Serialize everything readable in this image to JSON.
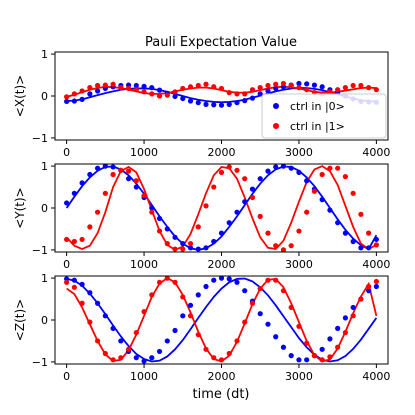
{
  "colors": {
    "ctrl0": "#0000ff",
    "ctrl1": "#ff0000",
    "axis": "#000000",
    "background": "#ffffff"
  },
  "chart_data": {
    "type": "line",
    "title": "Pauli Expectation Value",
    "xlabel": "time (dt)",
    "xlim": [
      -150,
      4150
    ],
    "xticks": [
      0,
      1000,
      2000,
      3000,
      4000
    ],
    "yticks": [
      -1,
      0,
      1
    ],
    "legend": {
      "placement": "lower-right",
      "subplot": 0,
      "entries": [
        "ctrl in |0>",
        "ctrl in |1>"
      ]
    },
    "x": [
      0,
      100,
      200,
      300,
      400,
      500,
      600,
      700,
      800,
      900,
      1000,
      1100,
      1200,
      1300,
      1400,
      1500,
      1600,
      1700,
      1800,
      1900,
      2000,
      2100,
      2200,
      2300,
      2400,
      2500,
      2600,
      2700,
      2800,
      2900,
      3000,
      3100,
      3200,
      3300,
      3400,
      3500,
      3600,
      3700,
      3800,
      3900,
      4000
    ],
    "subplots": [
      {
        "ylabel": "<X(t)>",
        "ylim": [
          -1.05,
          1.05
        ],
        "series": [
          {
            "name": "ctrl in |0>",
            "color": "blue",
            "points": [
              -0.13,
              -0.12,
              -0.08,
              0.05,
              0.12,
              0.18,
              0.22,
              0.25,
              0.26,
              0.25,
              0.23,
              0.2,
              0.14,
              0.06,
              -0.01,
              -0.06,
              -0.12,
              -0.16,
              -0.2,
              -0.21,
              -0.22,
              -0.2,
              -0.16,
              -0.11,
              -0.05,
              0.05,
              0.12,
              0.18,
              0.22,
              0.26,
              0.3,
              0.29,
              0.26,
              0.22,
              0.15,
              0.08,
              0.0,
              -0.07,
              -0.13,
              -0.14,
              -0.15
            ],
            "fit": [
              -0.12,
              -0.11,
              -0.08,
              -0.03,
              0.02,
              0.07,
              0.11,
              0.15,
              0.17,
              0.18,
              0.18,
              0.17,
              0.14,
              0.1,
              0.05,
              0.0,
              -0.05,
              -0.09,
              -0.12,
              -0.14,
              -0.15,
              -0.14,
              -0.12,
              -0.09,
              -0.04,
              0.01,
              0.06,
              0.11,
              0.15,
              0.18,
              0.19,
              0.19,
              0.17,
              0.14,
              0.09,
              0.04,
              -0.01,
              -0.06,
              -0.1,
              -0.12,
              -0.13
            ]
          },
          {
            "name": "ctrl in |1>",
            "color": "red",
            "points": [
              -0.02,
              0.05,
              0.12,
              0.2,
              0.25,
              0.26,
              0.28,
              0.2,
              0.18,
              0.15,
              0.1,
              0.05,
              0.0,
              0.02,
              0.1,
              0.18,
              0.22,
              0.25,
              0.28,
              0.22,
              0.18,
              0.08,
              0.05,
              0.05,
              0.15,
              0.2,
              0.25,
              0.28,
              0.3,
              0.25,
              0.2,
              0.15,
              0.08,
              0.05,
              0.1,
              0.15,
              0.2,
              0.25,
              0.25,
              0.2,
              0.15
            ],
            "fit": [
              -0.02,
              0.03,
              0.09,
              0.15,
              0.19,
              0.22,
              0.21,
              0.19,
              0.15,
              0.11,
              0.07,
              0.05,
              0.05,
              0.07,
              0.11,
              0.15,
              0.18,
              0.2,
              0.2,
              0.18,
              0.14,
              0.1,
              0.08,
              0.08,
              0.1,
              0.14,
              0.18,
              0.21,
              0.22,
              0.21,
              0.18,
              0.14,
              0.1,
              0.08,
              0.08,
              0.1,
              0.13,
              0.16,
              0.19,
              0.2,
              0.19
            ]
          }
        ]
      },
      {
        "ylabel": "<Y(t)>",
        "ylim": [
          -1.05,
          1.05
        ],
        "series": [
          {
            "name": "ctrl in |0>",
            "color": "blue",
            "points": [
              0.12,
              0.35,
              0.6,
              0.8,
              0.95,
              1.0,
              0.98,
              0.9,
              0.7,
              0.5,
              0.25,
              0.0,
              -0.25,
              -0.5,
              -0.7,
              -0.85,
              -0.95,
              -0.98,
              -0.95,
              -0.8,
              -0.6,
              -0.35,
              -0.1,
              0.15,
              0.45,
              0.7,
              0.88,
              0.98,
              1.0,
              0.95,
              0.85,
              0.65,
              0.45,
              0.2,
              -0.05,
              -0.35,
              -0.6,
              -0.8,
              -0.95,
              -0.95,
              -0.75
            ],
            "fit": [
              0.0,
              0.27,
              0.52,
              0.73,
              0.89,
              0.98,
              0.99,
              0.92,
              0.78,
              0.58,
              0.34,
              0.07,
              -0.2,
              -0.45,
              -0.68,
              -0.85,
              -0.96,
              -1.0,
              -0.96,
              -0.85,
              -0.68,
              -0.45,
              -0.2,
              0.07,
              0.34,
              0.58,
              0.78,
              0.92,
              0.99,
              0.98,
              0.89,
              0.73,
              0.52,
              0.27,
              0.0,
              -0.27,
              -0.52,
              -0.73,
              -0.89,
              -0.98,
              -0.65
            ]
          },
          {
            "name": "ctrl in |1>",
            "color": "red",
            "points": [
              -0.75,
              -0.8,
              -0.75,
              -0.45,
              -0.1,
              0.35,
              0.8,
              0.9,
              0.88,
              0.65,
              0.3,
              -0.1,
              -0.55,
              -0.85,
              -0.98,
              -0.98,
              -0.85,
              -0.45,
              0.05,
              0.5,
              0.85,
              0.98,
              0.9,
              0.7,
              0.25,
              -0.2,
              -0.6,
              -0.9,
              -1.0,
              -0.9,
              -0.55,
              -0.1,
              0.4,
              0.8,
              0.95,
              0.95,
              0.75,
              0.35,
              -0.15,
              -0.6,
              -0.88
            ],
            "fit": [
              -0.7,
              -0.9,
              -0.98,
              -0.9,
              -0.6,
              -0.1,
              0.5,
              0.88,
              0.98,
              0.85,
              0.45,
              -0.05,
              -0.55,
              -0.88,
              -1.0,
              -0.92,
              -0.62,
              -0.15,
              0.35,
              0.78,
              0.98,
              0.95,
              0.7,
              0.25,
              -0.25,
              -0.7,
              -0.95,
              -0.98,
              -0.78,
              -0.35,
              0.15,
              0.62,
              0.92,
              1.0,
              0.88,
              0.55,
              0.05,
              -0.45,
              -0.85,
              -0.98,
              -0.88
            ]
          }
        ]
      },
      {
        "ylabel": "<Z(t)>",
        "ylim": [
          -1.05,
          1.05
        ],
        "series": [
          {
            "name": "ctrl in |0>",
            "color": "blue",
            "points": [
              0.98,
              0.95,
              0.85,
              0.65,
              0.4,
              0.1,
              -0.2,
              -0.5,
              -0.75,
              -0.9,
              -0.98,
              -0.9,
              -0.75,
              -0.5,
              -0.25,
              0.1,
              0.35,
              0.6,
              0.8,
              0.95,
              1.0,
              0.98,
              0.9,
              0.7,
              0.45,
              0.15,
              -0.1,
              -0.4,
              -0.65,
              -0.85,
              -0.95,
              -0.95,
              -0.85,
              -0.7,
              -0.45,
              -0.2,
              0.05,
              0.3,
              0.5,
              0.7,
              0.8
            ],
            "fit": [
              0.98,
              0.94,
              0.82,
              0.63,
              0.4,
              0.14,
              -0.13,
              -0.39,
              -0.62,
              -0.81,
              -0.93,
              -0.99,
              -0.97,
              -0.87,
              -0.7,
              -0.48,
              -0.22,
              0.05,
              0.31,
              0.55,
              0.75,
              0.9,
              0.98,
              0.99,
              0.92,
              0.78,
              0.59,
              0.35,
              0.09,
              -0.17,
              -0.43,
              -0.65,
              -0.83,
              -0.95,
              -0.99,
              -0.96,
              -0.86,
              -0.69,
              -0.47,
              -0.21,
              0.05
            ]
          },
          {
            "name": "ctrl in |1>",
            "color": "red",
            "points": [
              0.9,
              0.78,
              0.4,
              -0.05,
              -0.5,
              -0.8,
              -0.95,
              -0.9,
              -0.7,
              -0.3,
              0.2,
              0.6,
              0.9,
              1.0,
              0.9,
              0.55,
              0.1,
              -0.35,
              -0.7,
              -0.9,
              -0.95,
              -0.8,
              -0.5,
              -0.05,
              0.4,
              0.75,
              0.95,
              0.95,
              0.7,
              0.3,
              -0.15,
              -0.55,
              -0.85,
              -0.95,
              -0.88,
              -0.65,
              -0.3,
              0.1,
              0.5,
              0.8,
              0.92
            ],
            "fit": [
              0.75,
              0.62,
              0.3,
              -0.1,
              -0.5,
              -0.82,
              -0.98,
              -0.95,
              -0.72,
              -0.35,
              0.1,
              0.55,
              0.87,
              1.0,
              0.9,
              0.6,
              0.18,
              -0.28,
              -0.68,
              -0.93,
              -0.99,
              -0.85,
              -0.52,
              -0.08,
              0.38,
              0.75,
              0.96,
              0.98,
              0.78,
              0.4,
              -0.05,
              -0.5,
              -0.84,
              -0.99,
              -0.94,
              -0.68,
              -0.28,
              0.16,
              0.56,
              0.86,
              0.1
            ]
          }
        ]
      }
    ]
  }
}
